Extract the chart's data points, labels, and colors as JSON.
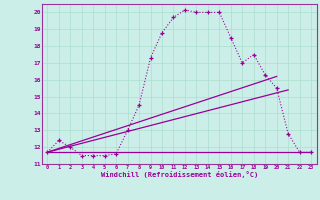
{
  "title": "",
  "xlabel": "Windchill (Refroidissement éolien,°C)",
  "bg_color": "#cceee8",
  "grid_color": "#aaddcc",
  "line_color": "#990099",
  "spine_color": "#993399",
  "xlim": [
    -0.5,
    23.5
  ],
  "ylim": [
    11,
    20.5
  ],
  "xticks": [
    0,
    1,
    2,
    3,
    4,
    5,
    6,
    7,
    8,
    9,
    10,
    11,
    12,
    13,
    14,
    15,
    16,
    17,
    18,
    19,
    20,
    21,
    22,
    23
  ],
  "yticks": [
    11,
    12,
    13,
    14,
    15,
    16,
    17,
    18,
    19,
    20
  ],
  "curve1_x": [
    0,
    1,
    2,
    3,
    4,
    5,
    6,
    7,
    8,
    9,
    10,
    11,
    12,
    13,
    14,
    15,
    16,
    17,
    18,
    19,
    20,
    21,
    22,
    23
  ],
  "curve1_y": [
    11.7,
    12.4,
    12.0,
    11.5,
    11.5,
    11.5,
    11.6,
    13.0,
    14.5,
    17.3,
    18.8,
    19.7,
    20.15,
    20.0,
    20.0,
    20.0,
    18.5,
    17.0,
    17.5,
    16.3,
    15.5,
    12.8,
    11.7,
    11.7
  ],
  "line1_x": [
    0,
    20
  ],
  "line1_y": [
    11.7,
    16.2
  ],
  "line2_x": [
    0,
    21
  ],
  "line2_y": [
    11.7,
    15.4
  ],
  "line3_x": [
    0,
    23
  ],
  "line3_y": [
    11.7,
    11.7
  ]
}
